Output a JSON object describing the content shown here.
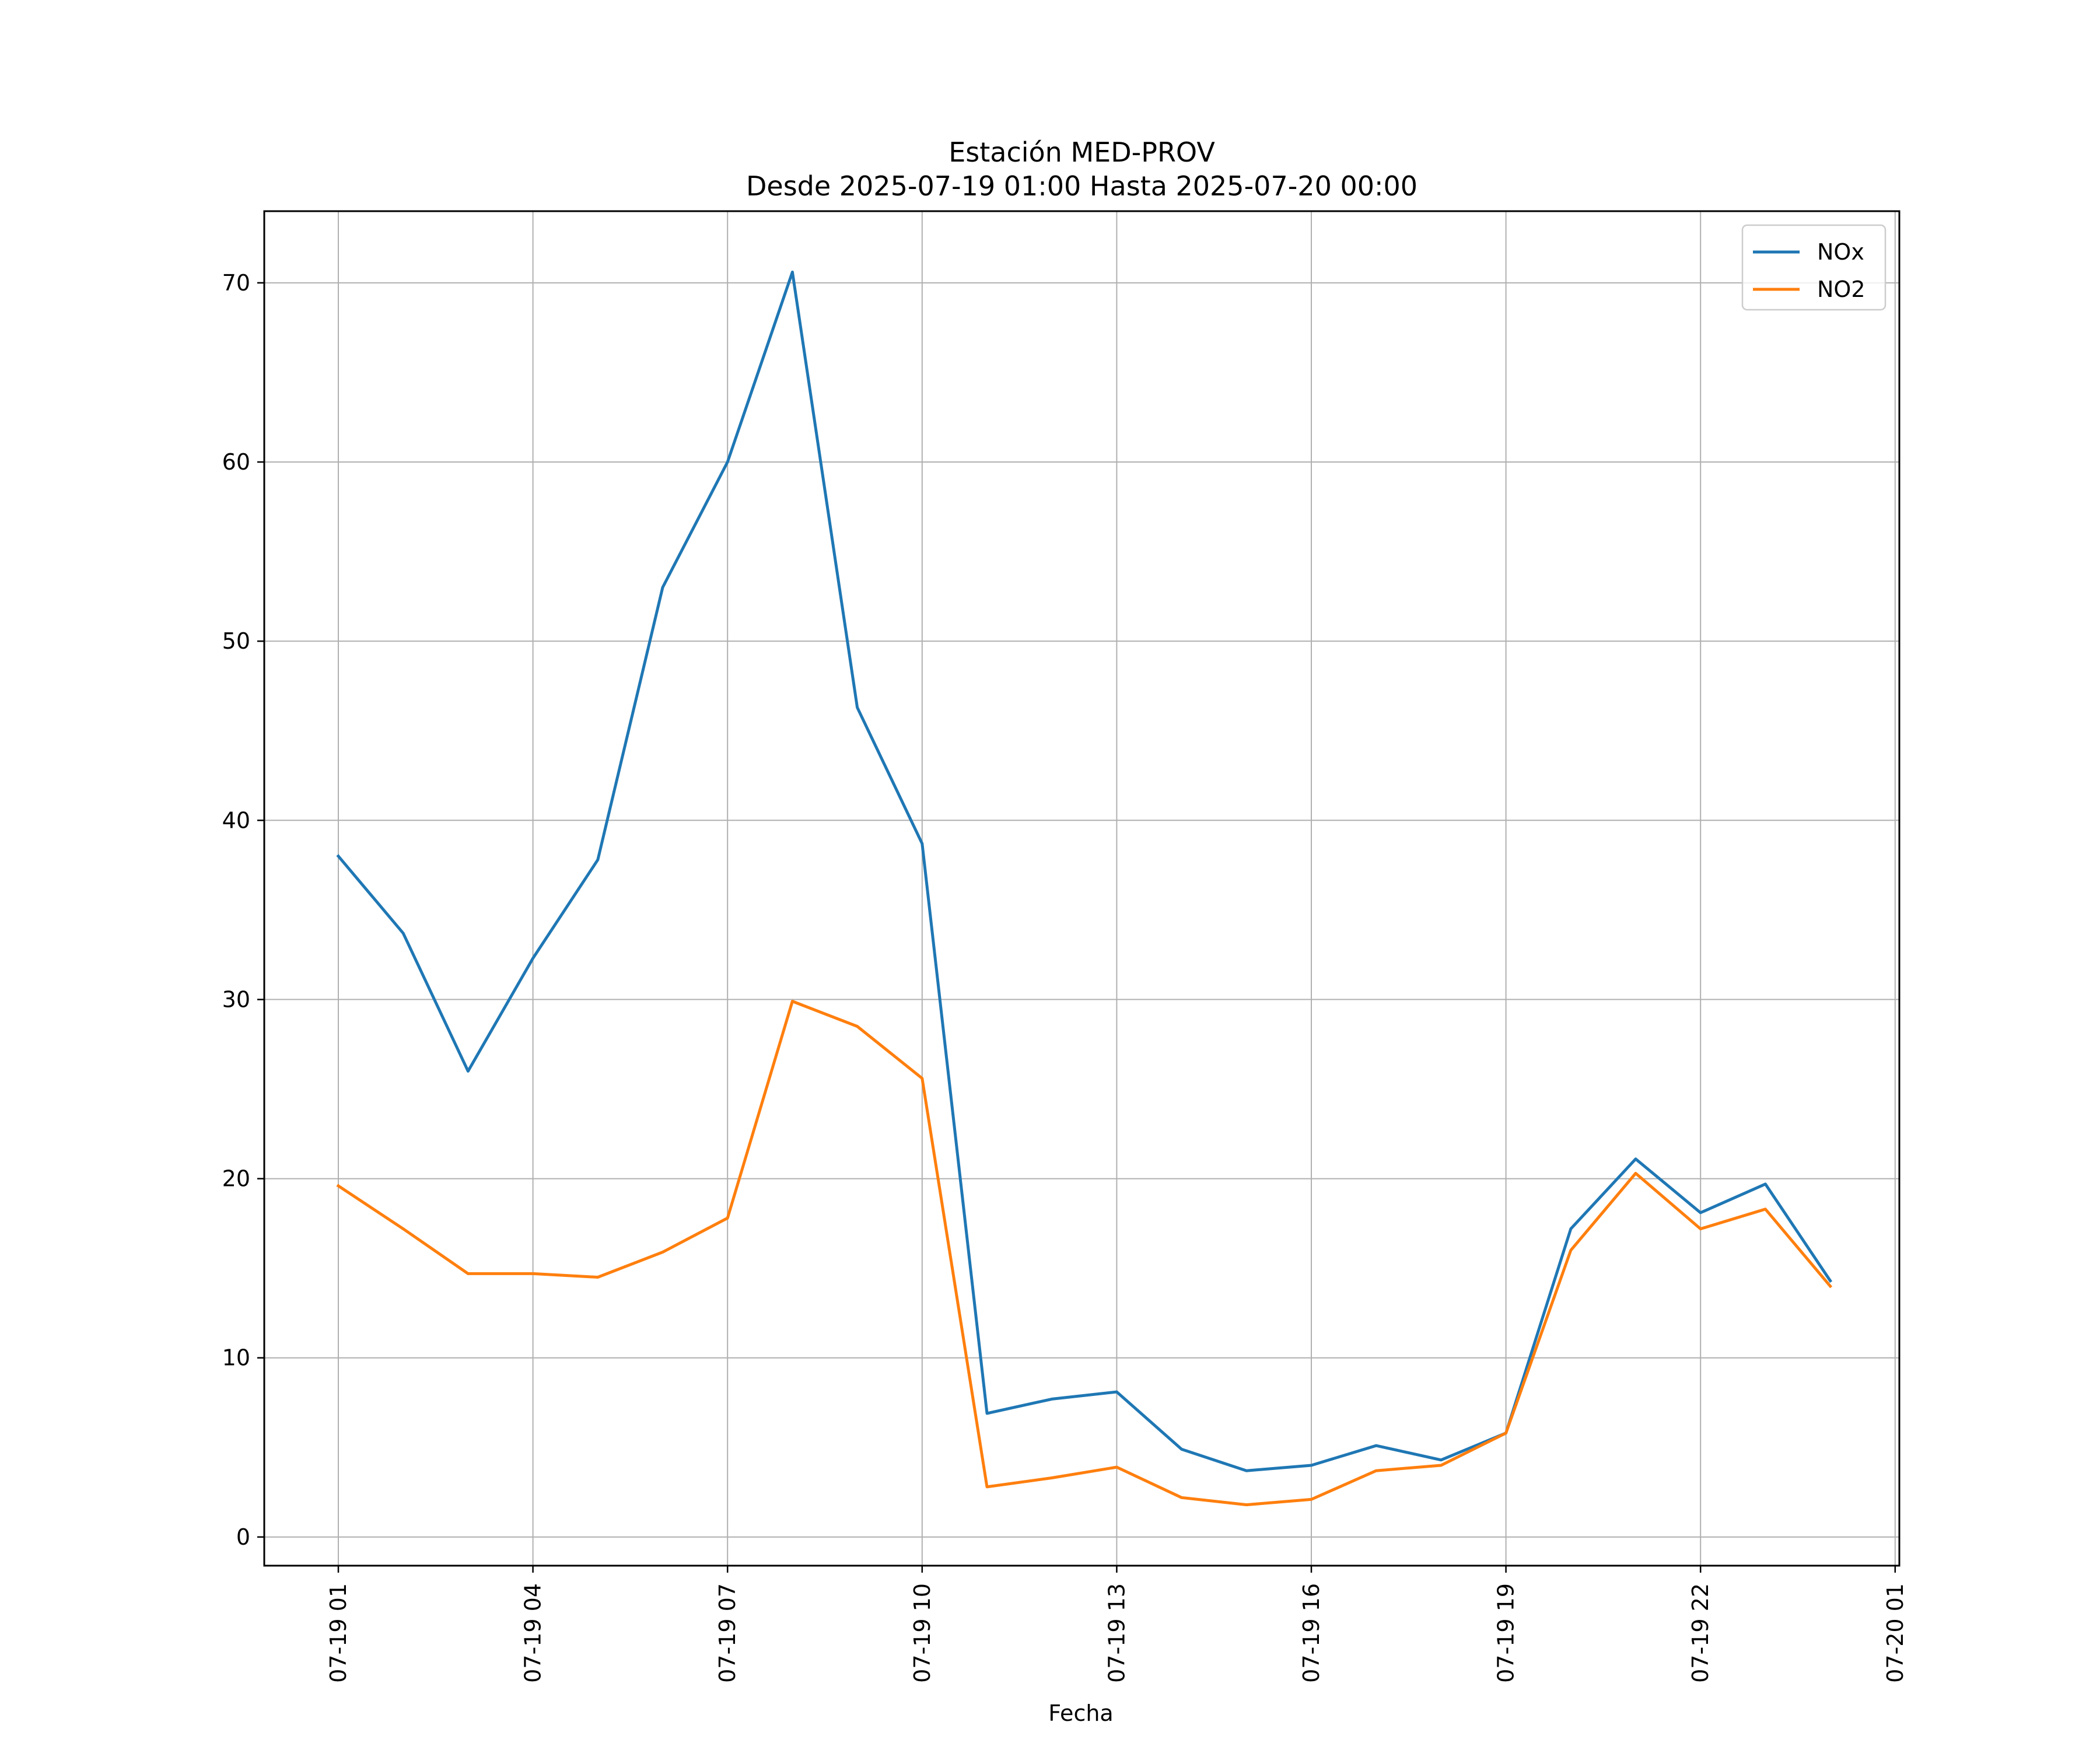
{
  "chart_data": {
    "type": "line",
    "title": "Estación MED-PROV",
    "subtitle": "Desde 2025-07-19 01:00 Hasta 2025-07-20 00:00",
    "xlabel": "Fecha",
    "ylabel": "",
    "x": [
      "07-19 01:00",
      "07-19 02:00",
      "07-19 03:00",
      "07-19 04:00",
      "07-19 05:00",
      "07-19 06:00",
      "07-19 07:00",
      "07-19 08:00",
      "07-19 09:00",
      "07-19 10:00",
      "07-19 11:00",
      "07-19 12:00",
      "07-19 13:00",
      "07-19 14:00",
      "07-19 15:00",
      "07-19 16:00",
      "07-19 17:00",
      "07-19 18:00",
      "07-19 19:00",
      "07-19 20:00",
      "07-19 21:00",
      "07-19 22:00",
      "07-19 23:00",
      "07-20 00:00"
    ],
    "xticks": [
      "07-19 01",
      "07-19 04",
      "07-19 07",
      "07-19 10",
      "07-19 13",
      "07-19 16",
      "07-19 19",
      "07-19 22",
      "07-20 01"
    ],
    "yticks": [
      "0",
      "10",
      "20",
      "30",
      "40",
      "50",
      "60",
      "70"
    ],
    "ylim": [
      -1.6,
      74
    ],
    "grid": true,
    "legend_position": "top-right",
    "series": [
      {
        "name": "NOx",
        "color": "#1f77b4",
        "values": [
          38.0,
          33.7,
          26.0,
          32.3,
          37.8,
          53.0,
          60.0,
          70.6,
          46.3,
          38.7,
          6.9,
          7.7,
          8.1,
          4.9,
          3.7,
          4.0,
          5.1,
          4.3,
          5.8,
          17.2,
          21.1,
          18.1,
          19.7,
          14.3
        ]
      },
      {
        "name": "NO2",
        "color": "#ff7f0e",
        "values": [
          19.6,
          17.2,
          14.7,
          14.7,
          14.5,
          15.9,
          17.8,
          29.9,
          28.5,
          25.6,
          2.8,
          3.3,
          3.9,
          2.2,
          1.8,
          2.1,
          3.7,
          4.0,
          5.8,
          16.0,
          20.3,
          17.2,
          18.3,
          14.0
        ]
      }
    ]
  }
}
